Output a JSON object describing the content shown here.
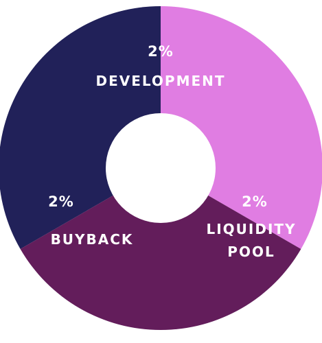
{
  "chart_data": {
    "type": "pie",
    "variant": "donut",
    "slices": [
      {
        "value_label": "2%",
        "name_lines": [
          "DEVELOPMENT"
        ],
        "value": 2,
        "color": "#212159"
      },
      {
        "value_label": "2%",
        "name_lines": [
          "LIQUIDITY",
          "POOL"
        ],
        "value": 2,
        "color": "#e07de2"
      },
      {
        "value_label": "2%",
        "name_lines": [
          "BUYBACK"
        ],
        "value": 2,
        "color": "#631d5b"
      }
    ],
    "hole_color": "#ffffff",
    "label_color": "#ffffff",
    "title": ""
  }
}
